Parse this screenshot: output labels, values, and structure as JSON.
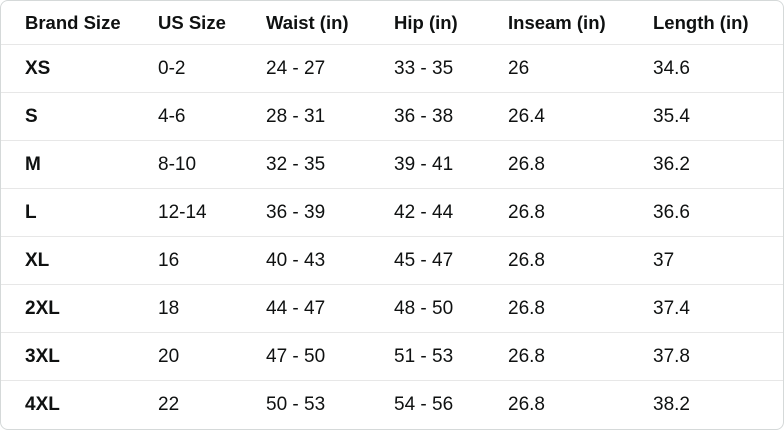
{
  "table": {
    "headers": [
      "Brand Size",
      "US Size",
      "Waist (in)",
      "Hip (in)",
      "Inseam (in)",
      "Length (in)"
    ],
    "rows": [
      [
        "XS",
        "0-2",
        "24 - 27",
        "33 - 35",
        "26",
        "34.6"
      ],
      [
        "S",
        "4-6",
        "28 - 31",
        "36 - 38",
        "26.4",
        "35.4"
      ],
      [
        "M",
        "8-10",
        "32 - 35",
        "39 - 41",
        "26.8",
        "36.2"
      ],
      [
        "L",
        "12-14",
        "36 - 39",
        "42 - 44",
        "26.8",
        "36.6"
      ],
      [
        "XL",
        "16",
        "40 - 43",
        "45 - 47",
        "26.8",
        "37"
      ],
      [
        "2XL",
        "18",
        "44 - 47",
        "48 - 50",
        "26.8",
        "37.4"
      ],
      [
        "3XL",
        "20",
        "47 - 50",
        "51 - 53",
        "26.8",
        "37.8"
      ],
      [
        "4XL",
        "22",
        "50 - 53",
        "54 - 56",
        "26.8",
        "38.2"
      ]
    ]
  },
  "colors": {
    "text": "#0f1111",
    "border": "#d5d9d9",
    "row_divider": "#e7e7e7",
    "background": "#ffffff"
  }
}
